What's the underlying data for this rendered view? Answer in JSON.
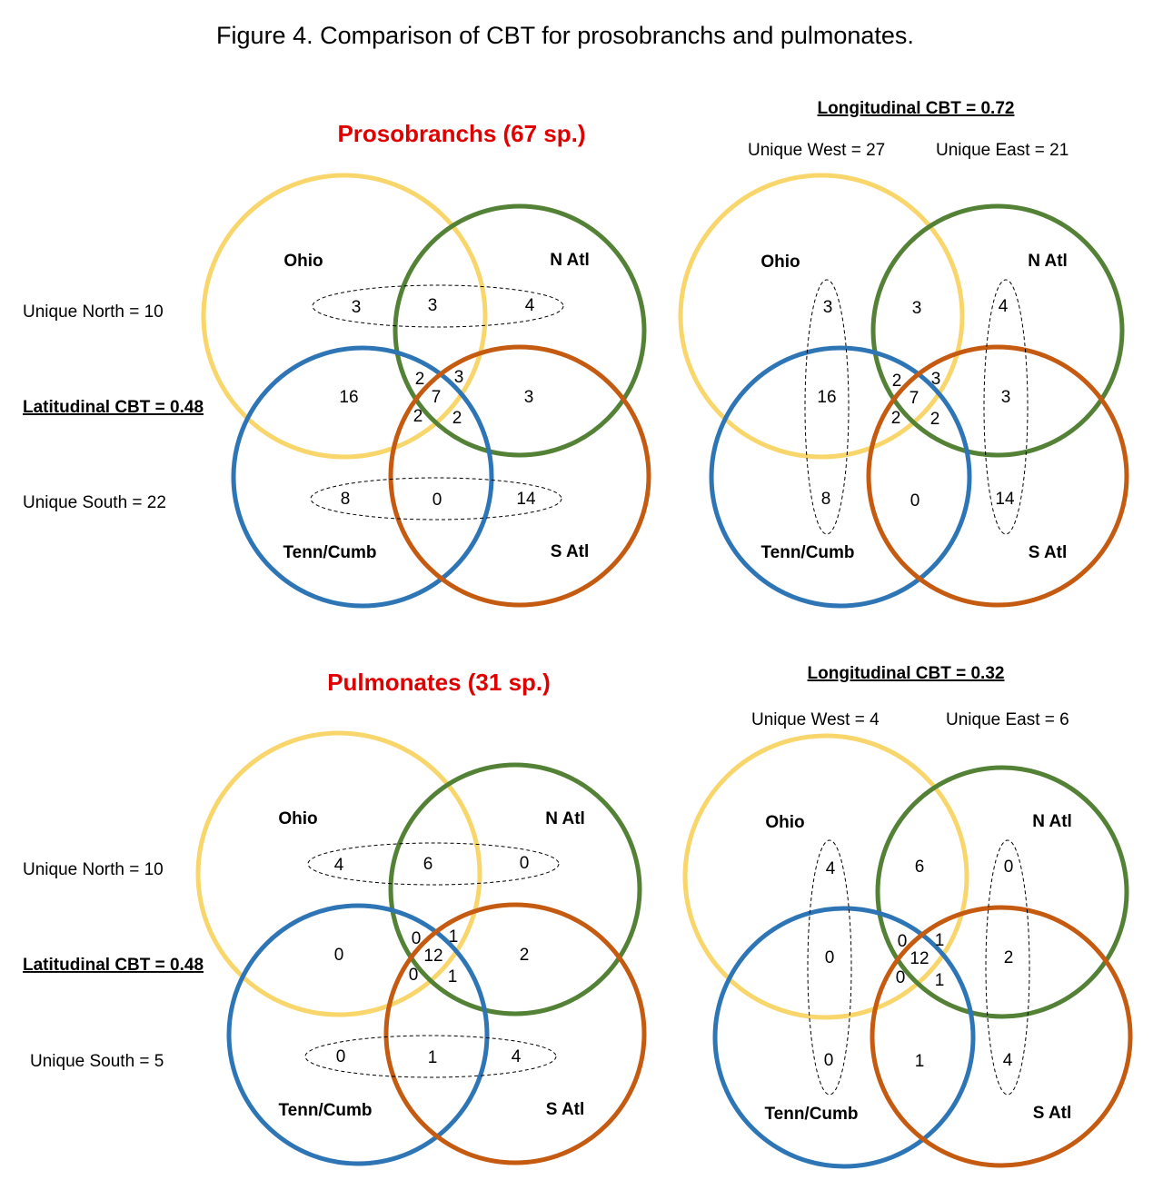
{
  "figure_title": "Figure 4.  Comparison of CBT for prosobranchs and pulmonates.",
  "colors": {
    "ohio": "#f9d66b",
    "n_atl": "#538135",
    "tenn_cumb": "#2e75b6",
    "s_atl": "#c55a11",
    "heading": "#e00000"
  },
  "region_labels": {
    "ohio": "Ohio",
    "n_atl": "N Atl",
    "tenn_cumb": "Tenn/Cumb",
    "s_atl": "S Atl"
  },
  "prosobranchs": {
    "heading": "Prosobranchs (67 sp.)",
    "unique_north": "Unique North = 10",
    "latitudinal_cbt": "Latitudinal CBT = 0.48",
    "unique_south": "Unique South = 22",
    "longitudinal_cbt": "Longitudinal CBT = 0.72",
    "unique_west": "Unique West = 27",
    "unique_east": "Unique East = 21",
    "counts": {
      "ohio_only": "3",
      "ohio_natl": "3",
      "natl_only": "4",
      "ohio_tenn": "16",
      "natl_satl": "3",
      "ohio_natl_tenn": "2",
      "ohio_natl_satl": "3",
      "all_four": "7",
      "ohio_tenn_satl": "2",
      "natl_tenn_satl": "2",
      "tenn_only": "8",
      "tenn_satl": "0",
      "satl_only": "14"
    }
  },
  "pulmonates": {
    "heading": "Pulmonates (31 sp.)",
    "unique_north": "Unique North = 10",
    "latitudinal_cbt": "Latitudinal CBT = 0.48",
    "unique_south": "Unique South = 5",
    "longitudinal_cbt": "Longitudinal CBT = 0.32",
    "unique_west": "Unique West = 4",
    "unique_east": "Unique East = 6",
    "counts": {
      "ohio_only": "4",
      "ohio_natl": "6",
      "natl_only": "0",
      "ohio_tenn": "0",
      "natl_satl": "2",
      "ohio_natl_tenn": "0",
      "ohio_natl_satl": "1",
      "all_four": "12",
      "ohio_tenn_satl": "0",
      "natl_tenn_satl": "1",
      "tenn_only": "0",
      "tenn_satl": "1",
      "satl_only": "4"
    }
  }
}
